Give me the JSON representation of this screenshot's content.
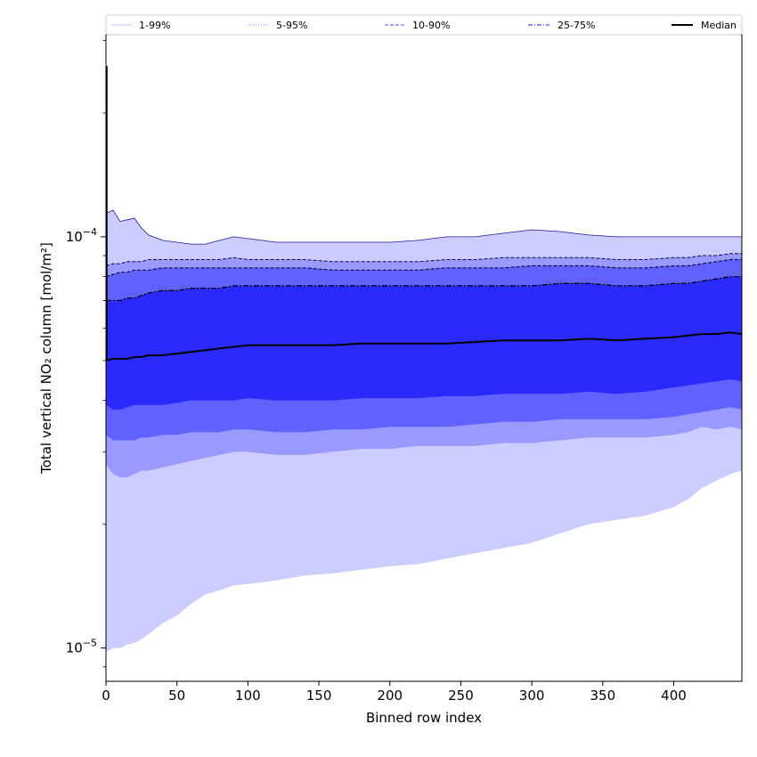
{
  "chart_data": {
    "type": "area",
    "xlabel": "Binned row index",
    "ylabel": "Total vertical NO₂ column [mol/m²]",
    "xlim": [
      0,
      448
    ],
    "ylim": [
      8.3e-06,
      0.00031
    ],
    "yscale": "log",
    "grid": false,
    "legend_position": "top",
    "x_ticks": [
      0,
      50,
      100,
      150,
      200,
      250,
      300,
      350,
      400
    ],
    "y_major_ticks": [
      {
        "value": 1e-05,
        "base": "10",
        "exp": "−5"
      },
      {
        "value": 0.0001,
        "base": "10",
        "exp": "−4"
      }
    ],
    "legend": [
      {
        "label": "1-99%",
        "color": "#cfcfff",
        "style": "solid"
      },
      {
        "label": "5-95%",
        "color": "#9a9aff",
        "style": "dotted"
      },
      {
        "label": "10-90%",
        "color": "#7575ff",
        "style": "dashed"
      },
      {
        "label": "25-75%",
        "color": "#4646ff",
        "style": "dashdot"
      },
      {
        "label": "Median",
        "color": "#000000",
        "style": "solid"
      }
    ],
    "x": [
      0,
      5,
      10,
      15,
      20,
      25,
      30,
      40,
      50,
      60,
      70,
      80,
      90,
      100,
      120,
      140,
      160,
      180,
      200,
      220,
      240,
      260,
      280,
      300,
      320,
      340,
      360,
      380,
      400,
      410,
      420,
      430,
      440,
      448
    ],
    "series": [
      {
        "name": "p99",
        "values": [
          0.000114,
          0.000116,
          0.000109,
          0.00011,
          0.000111,
          0.000105,
          0.000101,
          9.8e-05,
          9.7e-05,
          9.6e-05,
          9.6e-05,
          9.8e-05,
          0.0001,
          9.9e-05,
          9.7e-05,
          9.7e-05,
          9.7e-05,
          9.7e-05,
          9.7e-05,
          9.8e-05,
          0.0001,
          0.0001,
          0.000102,
          0.000104,
          0.000103,
          0.000101,
          0.0001,
          0.0001,
          0.0001,
          0.0001,
          0.0001,
          0.0001,
          0.0001,
          0.0001
        ]
      },
      {
        "name": "p95",
        "values": [
          8.5e-05,
          8.6e-05,
          8.6e-05,
          8.7e-05,
          8.7e-05,
          8.7e-05,
          8.8e-05,
          8.8e-05,
          8.8e-05,
          8.8e-05,
          8.8e-05,
          8.8e-05,
          8.9e-05,
          8.8e-05,
          8.8e-05,
          8.8e-05,
          8.7e-05,
          8.7e-05,
          8.7e-05,
          8.7e-05,
          8.8e-05,
          8.8e-05,
          8.9e-05,
          8.9e-05,
          8.9e-05,
          8.9e-05,
          8.8e-05,
          8.8e-05,
          8.9e-05,
          8.9e-05,
          9e-05,
          9e-05,
          9.1e-05,
          9.1e-05
        ]
      },
      {
        "name": "p90",
        "values": [
          8e-05,
          8.1e-05,
          8.2e-05,
          8.2e-05,
          8.3e-05,
          8.3e-05,
          8.3e-05,
          8.4e-05,
          8.4e-05,
          8.4e-05,
          8.4e-05,
          8.4e-05,
          8.4e-05,
          8.4e-05,
          8.4e-05,
          8.4e-05,
          8.3e-05,
          8.3e-05,
          8.3e-05,
          8.3e-05,
          8.4e-05,
          8.4e-05,
          8.4e-05,
          8.5e-05,
          8.5e-05,
          8.5e-05,
          8.4e-05,
          8.4e-05,
          8.5e-05,
          8.5e-05,
          8.6e-05,
          8.7e-05,
          8.8e-05,
          8.8e-05
        ]
      },
      {
        "name": "p75",
        "values": [
          7e-05,
          7e-05,
          7e-05,
          7.1e-05,
          7.1e-05,
          7.2e-05,
          7.3e-05,
          7.4e-05,
          7.4e-05,
          7.5e-05,
          7.5e-05,
          7.5e-05,
          7.6e-05,
          7.6e-05,
          7.6e-05,
          7.6e-05,
          7.6e-05,
          7.6e-05,
          7.6e-05,
          7.6e-05,
          7.6e-05,
          7.6e-05,
          7.6e-05,
          7.6e-05,
          7.7e-05,
          7.7e-05,
          7.6e-05,
          7.6e-05,
          7.7e-05,
          7.7e-05,
          7.8e-05,
          7.9e-05,
          8e-05,
          8e-05
        ]
      },
      {
        "name": "p50",
        "values": [
          5e-05,
          5.05e-05,
          5.05e-05,
          5.05e-05,
          5.1e-05,
          5.1e-05,
          5.15e-05,
          5.15e-05,
          5.2e-05,
          5.25e-05,
          5.3e-05,
          5.35e-05,
          5.4e-05,
          5.45e-05,
          5.45e-05,
          5.45e-05,
          5.45e-05,
          5.5e-05,
          5.5e-05,
          5.5e-05,
          5.5e-05,
          5.55e-05,
          5.6e-05,
          5.6e-05,
          5.6e-05,
          5.65e-05,
          5.6e-05,
          5.65e-05,
          5.7e-05,
          5.75e-05,
          5.8e-05,
          5.8e-05,
          5.85e-05,
          5.8e-05
        ]
      },
      {
        "name": "p25",
        "values": [
          3.9e-05,
          3.8e-05,
          3.8e-05,
          3.85e-05,
          3.9e-05,
          3.9e-05,
          3.9e-05,
          3.9e-05,
          3.95e-05,
          4e-05,
          4e-05,
          4e-05,
          4e-05,
          4.05e-05,
          4e-05,
          4e-05,
          4e-05,
          4.05e-05,
          4.05e-05,
          4.05e-05,
          4.1e-05,
          4.1e-05,
          4.15e-05,
          4.15e-05,
          4.15e-05,
          4.2e-05,
          4.15e-05,
          4.2e-05,
          4.3e-05,
          4.35e-05,
          4.4e-05,
          4.45e-05,
          4.5e-05,
          4.45e-05
        ]
      },
      {
        "name": "p10",
        "values": [
          3.3e-05,
          3.2e-05,
          3.2e-05,
          3.2e-05,
          3.2e-05,
          3.25e-05,
          3.25e-05,
          3.3e-05,
          3.3e-05,
          3.35e-05,
          3.35e-05,
          3.35e-05,
          3.4e-05,
          3.4e-05,
          3.35e-05,
          3.35e-05,
          3.4e-05,
          3.4e-05,
          3.45e-05,
          3.45e-05,
          3.45e-05,
          3.5e-05,
          3.55e-05,
          3.55e-05,
          3.6e-05,
          3.6e-05,
          3.6e-05,
          3.6e-05,
          3.65e-05,
          3.7e-05,
          3.75e-05,
          3.8e-05,
          3.85e-05,
          3.8e-05
        ]
      },
      {
        "name": "p5",
        "values": [
          2.8e-05,
          2.65e-05,
          2.6e-05,
          2.6e-05,
          2.65e-05,
          2.7e-05,
          2.7e-05,
          2.75e-05,
          2.8e-05,
          2.85e-05,
          2.9e-05,
          2.95e-05,
          3e-05,
          3e-05,
          2.95e-05,
          2.95e-05,
          3e-05,
          3.05e-05,
          3.05e-05,
          3.1e-05,
          3.1e-05,
          3.1e-05,
          3.15e-05,
          3.15e-05,
          3.2e-05,
          3.25e-05,
          3.25e-05,
          3.25e-05,
          3.3e-05,
          3.35e-05,
          3.45e-05,
          3.4e-05,
          3.45e-05,
          3.4e-05
        ]
      },
      {
        "name": "p1",
        "values": [
          9.8e-06,
          1e-05,
          1e-05,
          1.02e-05,
          1.03e-05,
          1.05e-05,
          1.08e-05,
          1.15e-05,
          1.2e-05,
          1.28e-05,
          1.35e-05,
          1.38e-05,
          1.42e-05,
          1.43e-05,
          1.46e-05,
          1.5e-05,
          1.52e-05,
          1.55e-05,
          1.58e-05,
          1.6e-05,
          1.65e-05,
          1.7e-05,
          1.75e-05,
          1.8e-05,
          1.9e-05,
          2e-05,
          2.05e-05,
          2.1e-05,
          2.2e-05,
          2.3e-05,
          2.45e-05,
          2.55e-05,
          2.65e-05,
          2.7e-05
        ]
      }
    ],
    "edge_spike": {
      "x": 0,
      "value": 0.00026
    }
  }
}
